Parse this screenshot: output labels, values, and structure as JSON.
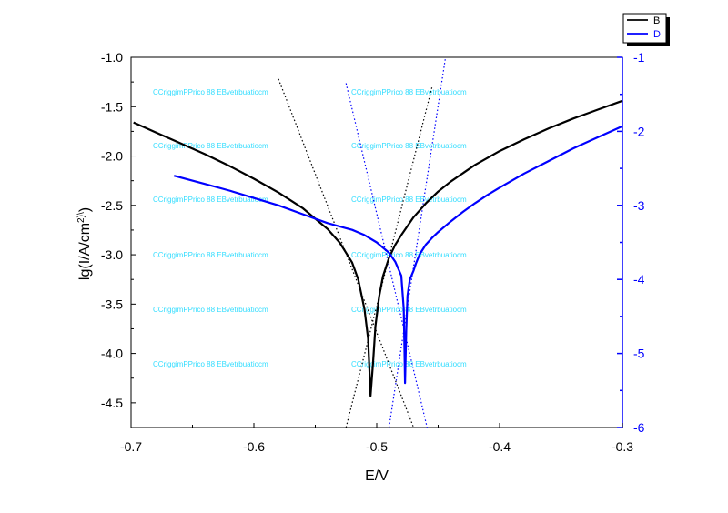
{
  "chart_data": {
    "type": "line",
    "title": "",
    "xlabel": "E/V",
    "ylabel": "lg(I/A/cm",
    "ylabel_sup": "2)\\",
    "ylabel_close": ")",
    "xlim": [
      -0.7,
      -0.3
    ],
    "ylim_left": [
      -4.75,
      -1.0
    ],
    "ylim_right": [
      -6,
      -1
    ],
    "x_ticks": [
      "-0.7",
      "-0.6",
      "-0.5",
      "-0.4",
      "-0.3"
    ],
    "y_ticks_left": [
      "-1.0",
      "-1.5",
      "-2.0",
      "-2.5",
      "-3.0",
      "-3.5",
      "-4.0",
      "-4.5"
    ],
    "y_ticks_right": [
      "-1",
      "-2",
      "-3",
      "-4",
      "-5",
      "-6"
    ],
    "legend": {
      "position": "top-right",
      "entries": [
        "B",
        "D"
      ]
    },
    "colors": {
      "B": "#000000",
      "D": "#0000ff",
      "right_axis": "#0000ff",
      "watermark": "#33ddff"
    },
    "watermark_text": "CCriggimPPrico 88 EBvetrbuatiocm",
    "series": [
      {
        "name": "B",
        "axis": "left",
        "x": [
          -0.698,
          -0.68,
          -0.66,
          -0.64,
          -0.62,
          -0.6,
          -0.58,
          -0.56,
          -0.54,
          -0.53,
          -0.52,
          -0.515,
          -0.51,
          -0.507,
          -0.505,
          -0.503,
          -0.501,
          -0.498,
          -0.495,
          -0.49,
          -0.485,
          -0.48,
          -0.47,
          -0.46,
          -0.45,
          -0.44,
          -0.42,
          -0.4,
          -0.38,
          -0.36,
          -0.34,
          -0.32,
          -0.3
        ],
        "y": [
          -1.66,
          -1.76,
          -1.87,
          -1.98,
          -2.1,
          -2.23,
          -2.37,
          -2.53,
          -2.74,
          -2.88,
          -3.08,
          -3.25,
          -3.55,
          -3.85,
          -4.43,
          -4.1,
          -3.72,
          -3.42,
          -3.22,
          -3.03,
          -2.9,
          -2.8,
          -2.62,
          -2.48,
          -2.36,
          -2.26,
          -2.09,
          -1.95,
          -1.83,
          -1.72,
          -1.62,
          -1.53,
          -1.44
        ]
      },
      {
        "name": "D",
        "axis": "right",
        "x": [
          -0.665,
          -0.64,
          -0.62,
          -0.6,
          -0.58,
          -0.56,
          -0.54,
          -0.52,
          -0.51,
          -0.5,
          -0.49,
          -0.485,
          -0.48,
          -0.478,
          -0.477,
          -0.476,
          -0.475,
          -0.473,
          -0.47,
          -0.468,
          -0.465,
          -0.46,
          -0.455,
          -0.45,
          -0.44,
          -0.43,
          -0.42,
          -0.41,
          -0.4,
          -0.38,
          -0.36,
          -0.34,
          -0.32,
          -0.3
        ],
        "y": [
          -2.6,
          -2.71,
          -2.8,
          -2.9,
          -3.0,
          -3.12,
          -3.24,
          -3.33,
          -3.4,
          -3.5,
          -3.64,
          -3.76,
          -3.95,
          -4.4,
          -5.4,
          -4.7,
          -4.22,
          -4.0,
          -3.88,
          -3.78,
          -3.66,
          -3.53,
          -3.44,
          -3.36,
          -3.22,
          -3.09,
          -2.97,
          -2.86,
          -2.76,
          -2.57,
          -2.4,
          -2.23,
          -2.08,
          -1.93
        ]
      }
    ],
    "tafel_lines": [
      {
        "series": "B",
        "axis": "left",
        "x": [
          -0.58,
          -0.47
        ],
        "y": [
          -1.22,
          -4.75
        ]
      },
      {
        "series": "B",
        "axis": "left",
        "x": [
          -0.525,
          -0.455
        ],
        "y": [
          -4.75,
          -1.3
        ]
      },
      {
        "series": "D",
        "axis": "right",
        "x": [
          -0.525,
          -0.459
        ],
        "y": [
          -1.35,
          -6.0
        ]
      },
      {
        "series": "D",
        "axis": "right",
        "x": [
          -0.49,
          -0.444
        ],
        "y": [
          -6.0,
          -1.0
        ]
      }
    ]
  }
}
